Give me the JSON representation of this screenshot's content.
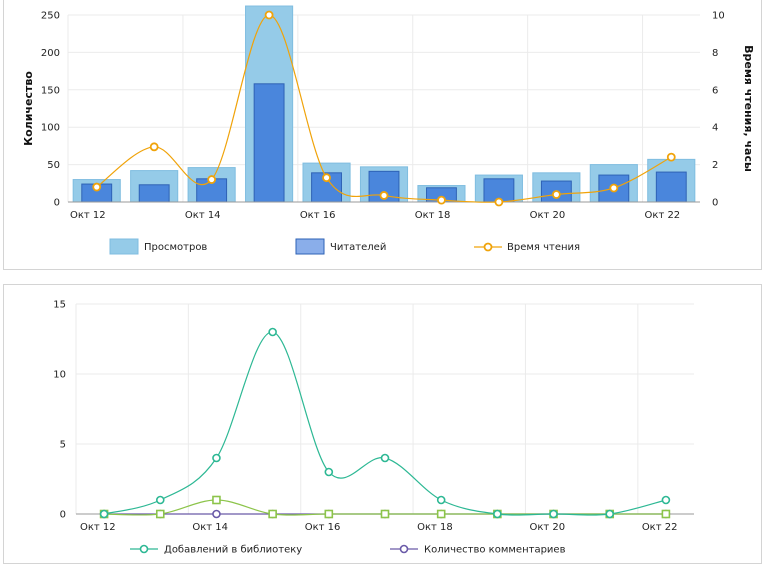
{
  "charts": [
    {
      "type": "bar",
      "categories": [
        "Окт 12",
        "Окт 13",
        "Окт 14",
        "Окт 15",
        "Окт 16",
        "Окт 17",
        "Окт 18",
        "Окт 19",
        "Окт 20",
        "Окт 21",
        "Окт 22"
      ],
      "x_tick_labels": [
        "Окт 12",
        "Окт 14",
        "Окт 16",
        "Окт 18",
        "Окт 20",
        "Окт 22"
      ],
      "ylabel": "Количество",
      "y2label": "Время чтения, часы",
      "ylim": [
        0,
        250
      ],
      "yticks": [
        0,
        50,
        100,
        150,
        200,
        250
      ],
      "y2lim": [
        0,
        10
      ],
      "y2ticks": [
        0,
        2,
        4,
        6,
        8,
        10
      ],
      "grid": true,
      "legend_position": "bottom",
      "series": [
        {
          "name": "Просмотров",
          "type": "bar",
          "axis": "left",
          "color": "#95cbe8",
          "stroke": "#7fbde0",
          "values": [
            30,
            42,
            46,
            262,
            52,
            47,
            22,
            36,
            39,
            50,
            57
          ]
        },
        {
          "name": "Читателей",
          "type": "bar",
          "axis": "left",
          "color": "#4a86dc",
          "stroke": "#2e62b5",
          "values": [
            24,
            23,
            31,
            158,
            39,
            41,
            19,
            31,
            28,
            36,
            40
          ]
        },
        {
          "name": "Время чтения",
          "type": "line",
          "axis": "right",
          "color": "#f0a30a",
          "values": [
            0.8,
            2.95,
            1.2,
            10,
            1.3,
            0.35,
            0.1,
            0.0,
            0.4,
            0.75,
            2.4
          ]
        }
      ]
    },
    {
      "type": "line",
      "categories": [
        "Окт 12",
        "Окт 13",
        "Окт 14",
        "Окт 15",
        "Окт 16",
        "Окт 17",
        "Окт 18",
        "Окт 19",
        "Окт 20",
        "Окт 21",
        "Окт 22"
      ],
      "x_tick_labels": [
        "Окт 12",
        "Окт 14",
        "Окт 16",
        "Окт 18",
        "Окт 20",
        "Окт 22"
      ],
      "ylim": [
        0,
        15
      ],
      "yticks": [
        0,
        5,
        10,
        15
      ],
      "grid": true,
      "legend_position": "bottom",
      "series": [
        {
          "name": "Добавлений в библиотеку",
          "marker": "circle",
          "color": "#2db894",
          "values": [
            0,
            1,
            4,
            13,
            3,
            4,
            1,
            0,
            0,
            0,
            1
          ]
        },
        {
          "name": "Количество комментариев",
          "marker": "circle",
          "color": "#6a5aa8",
          "values": [
            0,
            0,
            0,
            0,
            0,
            0,
            0,
            0,
            0,
            0,
            0
          ]
        },
        {
          "name": "",
          "marker": "square",
          "color": "#8cc44a",
          "values": [
            0,
            0,
            1,
            0,
            0,
            0,
            0,
            0,
            0,
            0,
            0
          ]
        }
      ]
    }
  ]
}
